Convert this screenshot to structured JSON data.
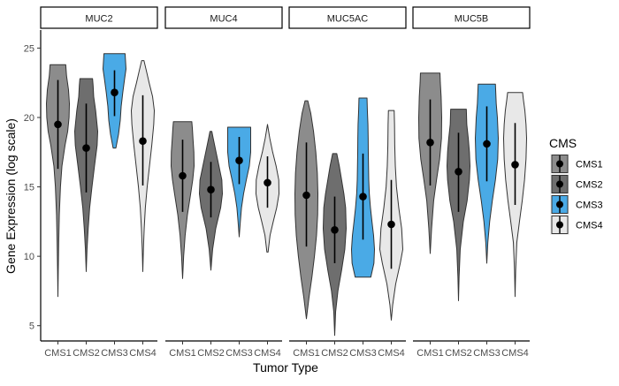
{
  "chart_data": {
    "type": "violin",
    "xlabel": "Tumor Type",
    "ylabel": "Gene Expression (log scale)",
    "ylim": [
      3.9,
      26.3
    ],
    "y_ticks": [
      5,
      10,
      15,
      20,
      25
    ],
    "grid": false,
    "legend_position": "right",
    "legend": {
      "title": "CMS",
      "items": [
        {
          "name": "CMS1",
          "color": "#8c8c8c"
        },
        {
          "name": "CMS2",
          "color": "#6e6e6e"
        },
        {
          "name": "CMS3",
          "color": "#4aaae6"
        },
        {
          "name": "CMS4",
          "color": "#e8e8e8"
        }
      ]
    },
    "categories": [
      "CMS1",
      "CMS2",
      "CMS3",
      "CMS4"
    ],
    "panels": [
      {
        "name": "MUC2",
        "groups": [
          {
            "category": "CMS1",
            "min": 7.1,
            "max": 23.8,
            "median": 19.5,
            "lower": 16.3,
            "upper": 22.7,
            "profile": [
              [
                7.1,
                0
              ],
              [
                9,
                0.03
              ],
              [
                11,
                0.07
              ],
              [
                13,
                0.12
              ],
              [
                15,
                0.22
              ],
              [
                16.5,
                0.35
              ],
              [
                18,
                0.62
              ],
              [
                19,
                0.85
              ],
              [
                20,
                0.97
              ],
              [
                21,
                1.0
              ],
              [
                22,
                0.92
              ],
              [
                23,
                0.75
              ],
              [
                23.8,
                0.68
              ]
            ]
          },
          {
            "category": "CMS2",
            "min": 8.9,
            "max": 22.8,
            "median": 17.8,
            "lower": 14.6,
            "upper": 21.0,
            "profile": [
              [
                8.9,
                0
              ],
              [
                10.5,
                0.07
              ],
              [
                12,
                0.17
              ],
              [
                13.5,
                0.3
              ],
              [
                15,
                0.5
              ],
              [
                16.5,
                0.72
              ],
              [
                18,
                0.95
              ],
              [
                19,
                1.0
              ],
              [
                20.5,
                0.82
              ],
              [
                21.5,
                0.65
              ],
              [
                22.3,
                0.6
              ],
              [
                22.8,
                0.55
              ]
            ]
          },
          {
            "category": "CMS3",
            "min": 17.8,
            "max": 24.6,
            "median": 21.8,
            "lower": 20.1,
            "upper": 23.4,
            "profile": [
              [
                17.8,
                0.12
              ],
              [
                18.8,
                0.35
              ],
              [
                19.8,
                0.5
              ],
              [
                20.8,
                0.58
              ],
              [
                21.8,
                0.72
              ],
              [
                22.8,
                0.88
              ],
              [
                23.5,
                1.0
              ],
              [
                24.2,
                0.95
              ],
              [
                24.6,
                0.92
              ]
            ]
          },
          {
            "category": "CMS4",
            "min": 8.9,
            "max": 24.1,
            "median": 18.3,
            "lower": 15.1,
            "upper": 21.6,
            "profile": [
              [
                8.9,
                0
              ],
              [
                10.5,
                0.05
              ],
              [
                12,
                0.12
              ],
              [
                13.5,
                0.22
              ],
              [
                15,
                0.38
              ],
              [
                16.5,
                0.58
              ],
              [
                18,
                0.78
              ],
              [
                19.5,
                0.95
              ],
              [
                20.5,
                1.0
              ],
              [
                21.5,
                0.85
              ],
              [
                22.5,
                0.55
              ],
              [
                23.4,
                0.3
              ],
              [
                24.1,
                0.1
              ]
            ]
          }
        ]
      },
      {
        "name": "MUC4",
        "groups": [
          {
            "category": "CMS1",
            "min": 8.4,
            "max": 19.7,
            "median": 15.8,
            "lower": 13.2,
            "upper": 18.4,
            "profile": [
              [
                8.4,
                0
              ],
              [
                10,
                0.09
              ],
              [
                11.5,
                0.22
              ],
              [
                13,
                0.42
              ],
              [
                14.5,
                0.7
              ],
              [
                15.5,
                0.88
              ],
              [
                16.5,
                1.0
              ],
              [
                17.5,
                0.98
              ],
              [
                18.5,
                0.9
              ],
              [
                19.2,
                0.85
              ],
              [
                19.7,
                0.8
              ]
            ]
          },
          {
            "category": "CMS2",
            "min": 9.0,
            "max": 19.0,
            "median": 14.8,
            "lower": 12.8,
            "upper": 16.8,
            "profile": [
              [
                9,
                0
              ],
              [
                10.5,
                0.15
              ],
              [
                12,
                0.42
              ],
              [
                13.5,
                0.85
              ],
              [
                14.5,
                1.0
              ],
              [
                15.5,
                0.95
              ],
              [
                16.5,
                0.7
              ],
              [
                17.5,
                0.45
              ],
              [
                18.5,
                0.2
              ],
              [
                19,
                0.08
              ]
            ]
          },
          {
            "category": "CMS3",
            "min": 11.4,
            "max": 19.3,
            "median": 16.9,
            "lower": 15.2,
            "upper": 18.6,
            "profile": [
              [
                11.4,
                0
              ],
              [
                12.5,
                0.1
              ],
              [
                13.5,
                0.2
              ],
              [
                14.5,
                0.38
              ],
              [
                15.5,
                0.62
              ],
              [
                16.5,
                0.88
              ],
              [
                17.5,
                1.0
              ],
              [
                18.5,
                1.0
              ],
              [
                19.3,
                1.0
              ]
            ]
          },
          {
            "category": "CMS4",
            "min": 10.3,
            "max": 19.5,
            "median": 15.3,
            "lower": 13.5,
            "upper": 17.2,
            "profile": [
              [
                10.3,
                0.05
              ],
              [
                11.5,
                0.22
              ],
              [
                12.5,
                0.5
              ],
              [
                13.5,
                0.8
              ],
              [
                14.5,
                1.0
              ],
              [
                15.5,
                0.98
              ],
              [
                16.5,
                0.75
              ],
              [
                17.5,
                0.45
              ],
              [
                18.5,
                0.2
              ],
              [
                19.5,
                0
              ]
            ]
          }
        ]
      },
      {
        "name": "MUC5AC",
        "groups": [
          {
            "category": "CMS1",
            "min": 5.5,
            "max": 21.2,
            "median": 14.4,
            "lower": 10.7,
            "upper": 18.2,
            "profile": [
              [
                5.5,
                0
              ],
              [
                7,
                0.22
              ],
              [
                8.5,
                0.48
              ],
              [
                10,
                0.7
              ],
              [
                11.5,
                0.88
              ],
              [
                13,
                0.98
              ],
              [
                14.5,
                1.0
              ],
              [
                16,
                0.95
              ],
              [
                17.5,
                0.82
              ],
              [
                19,
                0.62
              ],
              [
                20.3,
                0.38
              ],
              [
                21.2,
                0.12
              ]
            ]
          },
          {
            "category": "CMS2",
            "min": 4.3,
            "max": 17.4,
            "median": 11.9,
            "lower": 9.5,
            "upper": 14.3,
            "profile": [
              [
                4.3,
                0
              ],
              [
                6,
                0.08
              ],
              [
                7.5,
                0.28
              ],
              [
                9,
                0.6
              ],
              [
                10.5,
                0.88
              ],
              [
                12,
                1.0
              ],
              [
                13.5,
                0.95
              ],
              [
                14.5,
                0.8
              ],
              [
                15.5,
                0.6
              ],
              [
                16.5,
                0.4
              ],
              [
                17.4,
                0.18
              ]
            ]
          },
          {
            "category": "CMS3",
            "min": 8.5,
            "max": 21.4,
            "median": 14.3,
            "lower": 11.2,
            "upper": 17.4,
            "profile": [
              [
                8.5,
                0.68
              ],
              [
                9.5,
                0.95
              ],
              [
                10.5,
                1.0
              ],
              [
                11.5,
                0.92
              ],
              [
                12.5,
                0.78
              ],
              [
                13.5,
                0.65
              ],
              [
                14.5,
                0.55
              ],
              [
                15.5,
                0.5
              ],
              [
                16.5,
                0.48
              ],
              [
                17.5,
                0.46
              ],
              [
                18.5,
                0.45
              ],
              [
                19.5,
                0.43
              ],
              [
                20.5,
                0.38
              ],
              [
                21.4,
                0.35
              ]
            ]
          },
          {
            "category": "CMS4",
            "min": 5.4,
            "max": 20.5,
            "median": 12.3,
            "lower": 9.1,
            "upper": 15.5,
            "profile": [
              [
                5.4,
                0
              ],
              [
                6.5,
                0.12
              ],
              [
                8,
                0.38
              ],
              [
                9.5,
                0.78
              ],
              [
                10.5,
                1.0
              ],
              [
                12,
                0.9
              ],
              [
                13.5,
                0.65
              ],
              [
                15,
                0.45
              ],
              [
                16.5,
                0.35
              ],
              [
                18,
                0.3
              ],
              [
                19.5,
                0.28
              ],
              [
                20.5,
                0.25
              ]
            ]
          }
        ]
      },
      {
        "name": "MUC5B",
        "groups": [
          {
            "category": "CMS1",
            "min": 10.2,
            "max": 23.2,
            "median": 18.2,
            "lower": 15.1,
            "upper": 21.3,
            "profile": [
              [
                10.2,
                0
              ],
              [
                12,
                0.12
              ],
              [
                14,
                0.3
              ],
              [
                15.5,
                0.55
              ],
              [
                17,
                0.82
              ],
              [
                18.5,
                0.98
              ],
              [
                20,
                1.0
              ],
              [
                21.5,
                0.95
              ],
              [
                22.5,
                0.88
              ],
              [
                23.2,
                0.85
              ]
            ]
          },
          {
            "category": "CMS2",
            "min": 6.8,
            "max": 20.6,
            "median": 16.1,
            "lower": 13.2,
            "upper": 18.9,
            "profile": [
              [
                6.8,
                0
              ],
              [
                8.5,
                0.05
              ],
              [
                10.5,
                0.15
              ],
              [
                12.5,
                0.42
              ],
              [
                14,
                0.75
              ],
              [
                15.5,
                0.95
              ],
              [
                16.5,
                1.0
              ],
              [
                17.5,
                0.95
              ],
              [
                18.5,
                0.85
              ],
              [
                19.5,
                0.72
              ],
              [
                20.6,
                0.68
              ]
            ]
          },
          {
            "category": "CMS3",
            "min": 9.5,
            "max": 22.4,
            "median": 18.1,
            "lower": 15.4,
            "upper": 20.8,
            "profile": [
              [
                9.5,
                0
              ],
              [
                11,
                0.09
              ],
              [
                12.5,
                0.25
              ],
              [
                14,
                0.48
              ],
              [
                15.5,
                0.75
              ],
              [
                17,
                0.95
              ],
              [
                18.5,
                1.0
              ],
              [
                20,
                0.92
              ],
              [
                21,
                0.82
              ],
              [
                21.8,
                0.78
              ],
              [
                22.4,
                0.75
              ]
            ]
          },
          {
            "category": "CMS4",
            "min": 7.1,
            "max": 21.8,
            "median": 16.6,
            "lower": 13.7,
            "upper": 19.6,
            "profile": [
              [
                7.1,
                0
              ],
              [
                9,
                0.05
              ],
              [
                11,
                0.15
              ],
              [
                12.5,
                0.38
              ],
              [
                14,
                0.62
              ],
              [
                15.5,
                0.82
              ],
              [
                17,
                0.95
              ],
              [
                18.5,
                1.0
              ],
              [
                19.5,
                0.95
              ],
              [
                20.5,
                0.85
              ],
              [
                21.3,
                0.72
              ],
              [
                21.8,
                0.65
              ]
            ]
          }
        ]
      }
    ]
  }
}
